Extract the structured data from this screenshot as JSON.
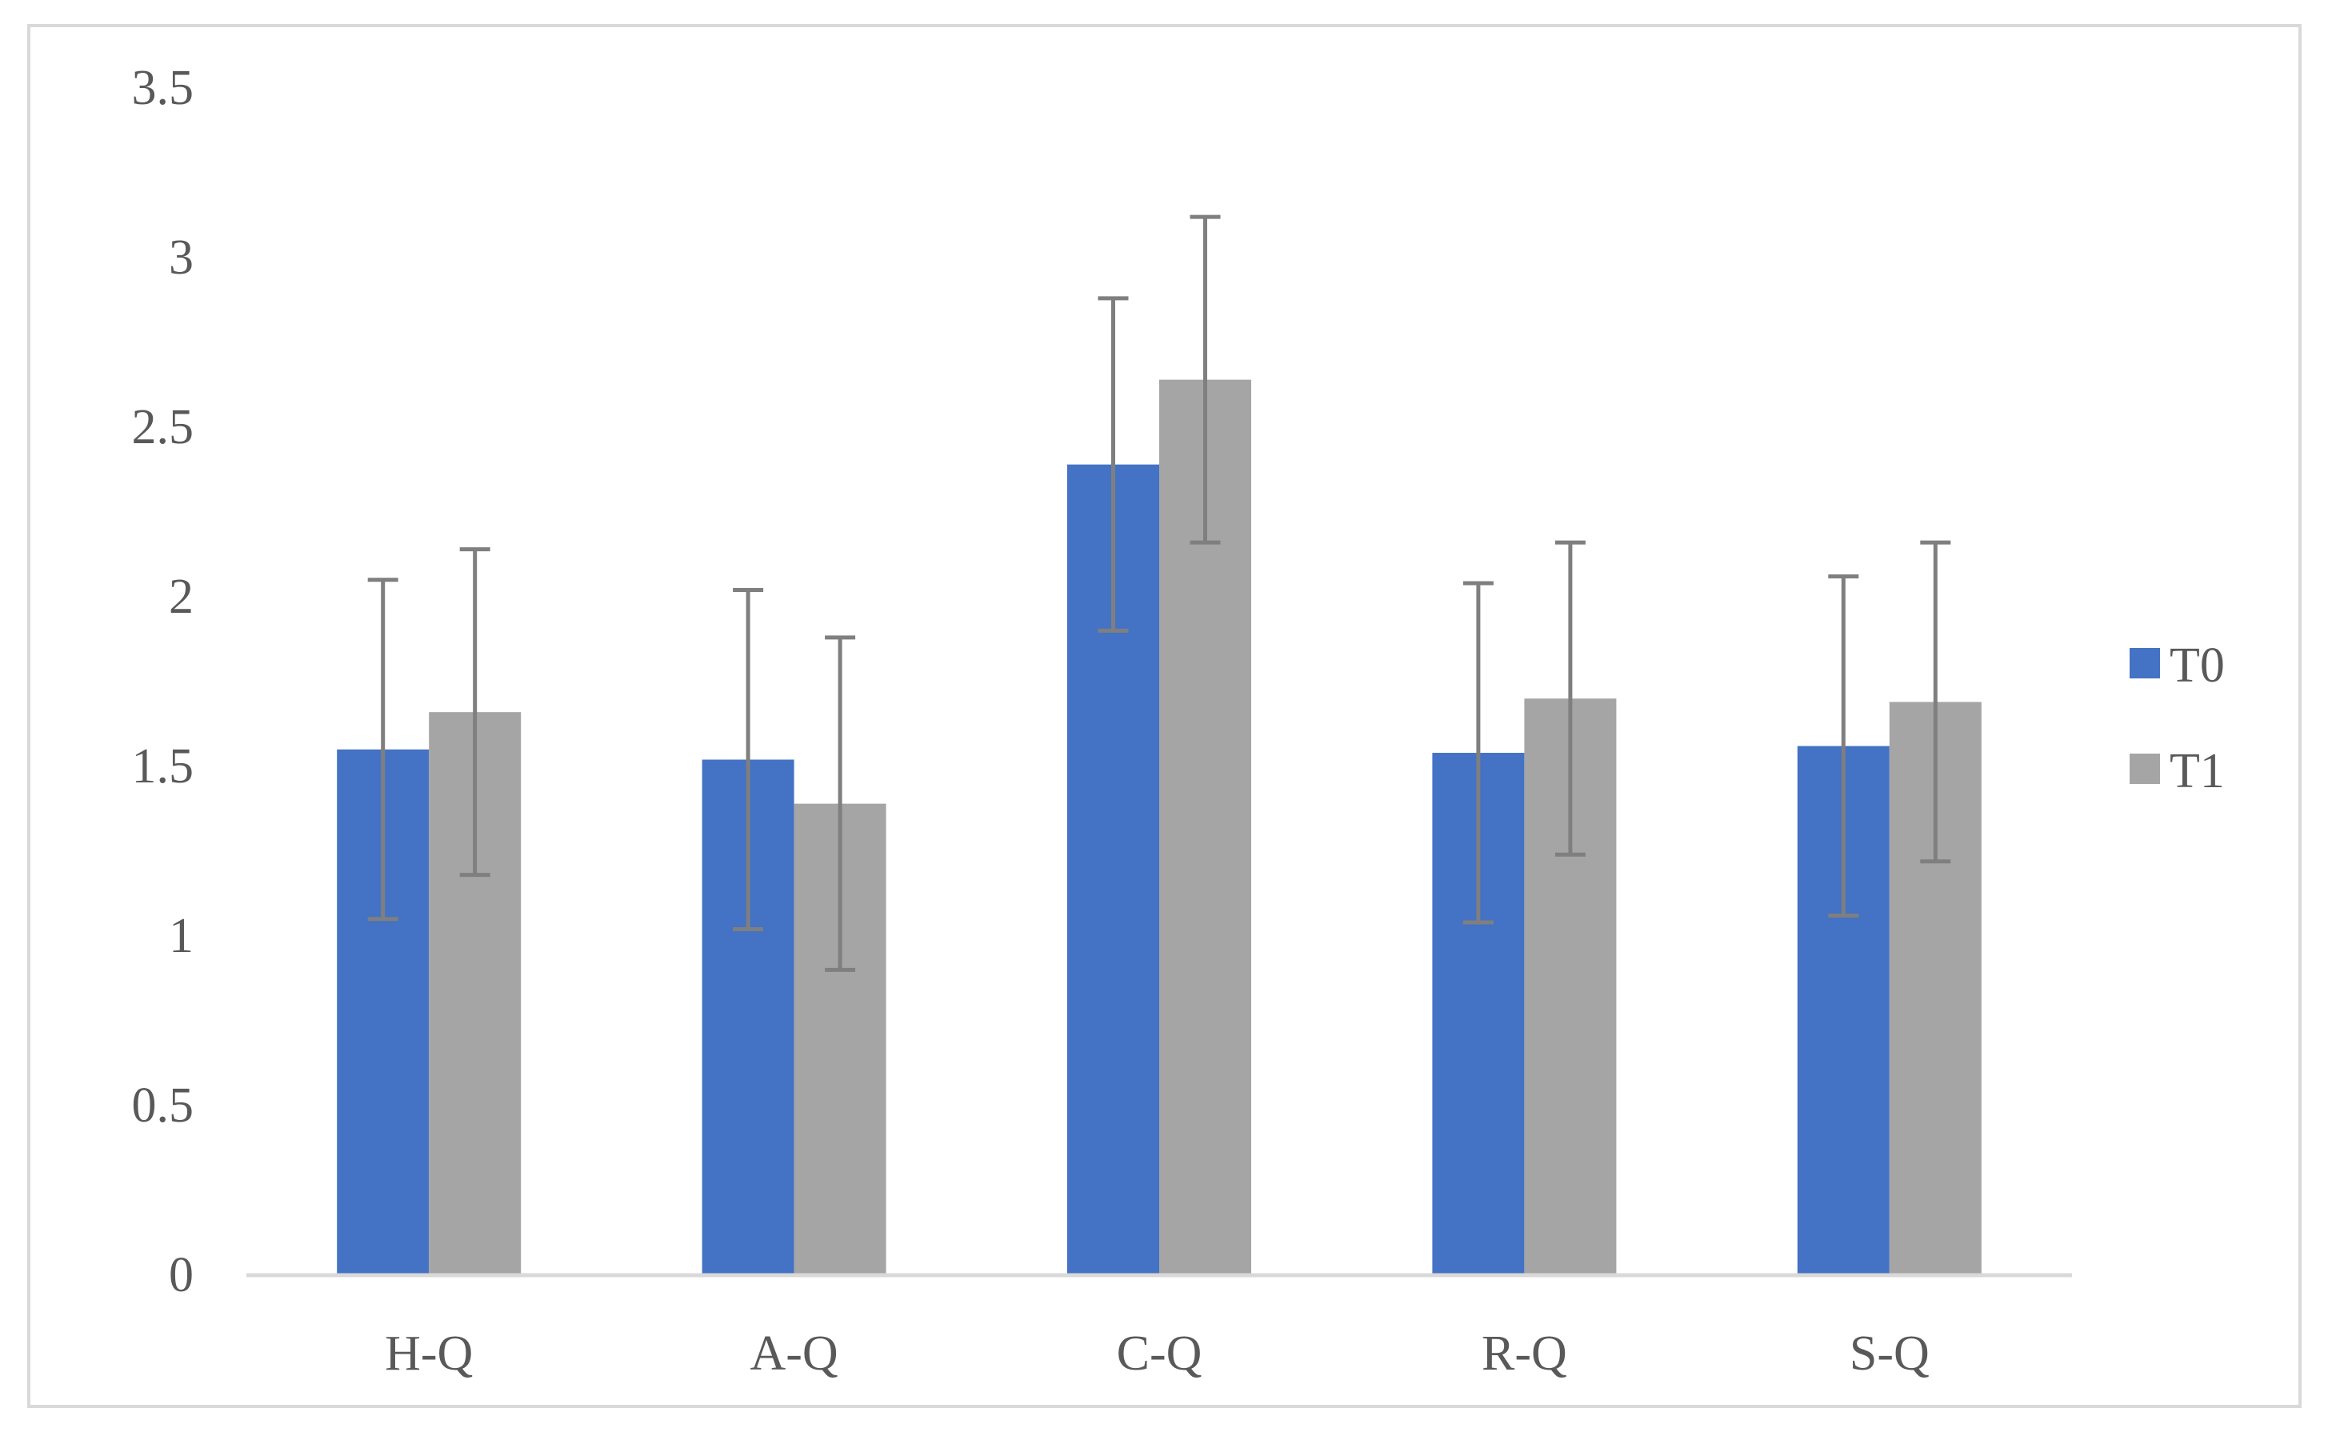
{
  "chart_data": {
    "type": "bar",
    "title": "",
    "xlabel": "",
    "ylabel": "",
    "ylim": [
      0,
      3.5
    ],
    "yticks": [
      0,
      0.5,
      1,
      1.5,
      2,
      2.5,
      3,
      3.5
    ],
    "ytick_labels": [
      "0",
      "0.5",
      "1",
      "1.5",
      "2",
      "2.5",
      "3",
      "3.5"
    ],
    "grid": false,
    "legend_position": "right",
    "categories": [
      "H-Q",
      "A-Q",
      "C-Q",
      "R-Q",
      "S-Q"
    ],
    "series": [
      {
        "name": "T0",
        "color": "#4472c4",
        "values": [
          1.55,
          1.52,
          2.39,
          1.54,
          1.56
        ],
        "error_low": [
          1.05,
          1.02,
          1.9,
          1.04,
          1.06
        ],
        "error_high": [
          2.05,
          2.02,
          2.88,
          2.04,
          2.06
        ]
      },
      {
        "name": "T1",
        "color": "#a5a5a5",
        "values": [
          1.66,
          1.39,
          2.64,
          1.7,
          1.69
        ],
        "error_low": [
          1.18,
          0.9,
          2.16,
          1.24,
          1.22
        ],
        "error_high": [
          2.14,
          1.88,
          3.12,
          2.16,
          2.16
        ]
      }
    ],
    "error_bar_color": "#7f7f7f",
    "axis_color": "#d9d9d9"
  }
}
